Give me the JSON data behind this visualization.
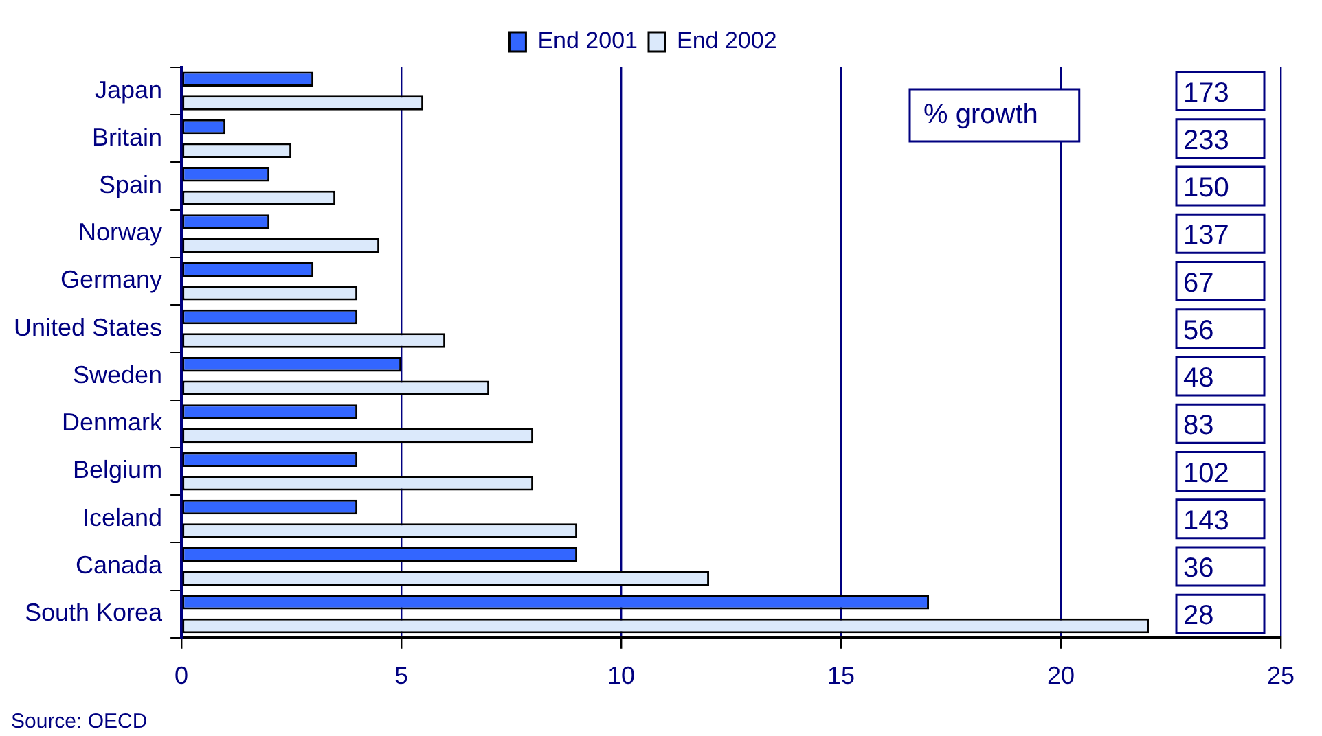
{
  "chart_data": {
    "type": "bar",
    "orientation": "horizontal",
    "categories": [
      "Japan",
      "Britain",
      "Spain",
      "Norway",
      "Germany",
      "United States",
      "Sweden",
      "Denmark",
      "Belgium",
      "Iceland",
      "Canada",
      "South Korea"
    ],
    "series": [
      {
        "name": "End 2001",
        "color": "#3366ff",
        "values": [
          3.0,
          1.0,
          2.0,
          2.0,
          3.0,
          4.0,
          5.0,
          4.0,
          4.0,
          4.0,
          9.0,
          17.0
        ]
      },
      {
        "name": "End 2002",
        "color": "#dbe9fb",
        "values": [
          5.5,
          2.5,
          3.5,
          4.5,
          4.0,
          6.0,
          7.0,
          8.0,
          8.0,
          9.0,
          12.0,
          22.0
        ]
      }
    ],
    "xlim": [
      0,
      25
    ],
    "xticks": [
      0,
      5,
      10,
      15,
      20,
      25
    ],
    "grid": "x",
    "legend": "top",
    "annotations": [
      "% growth",
      "Source: OECD",
      "173",
      "233",
      "150",
      "137",
      "67",
      "56",
      "48",
      "83",
      "102",
      "143",
      "36",
      "28"
    ]
  }
}
